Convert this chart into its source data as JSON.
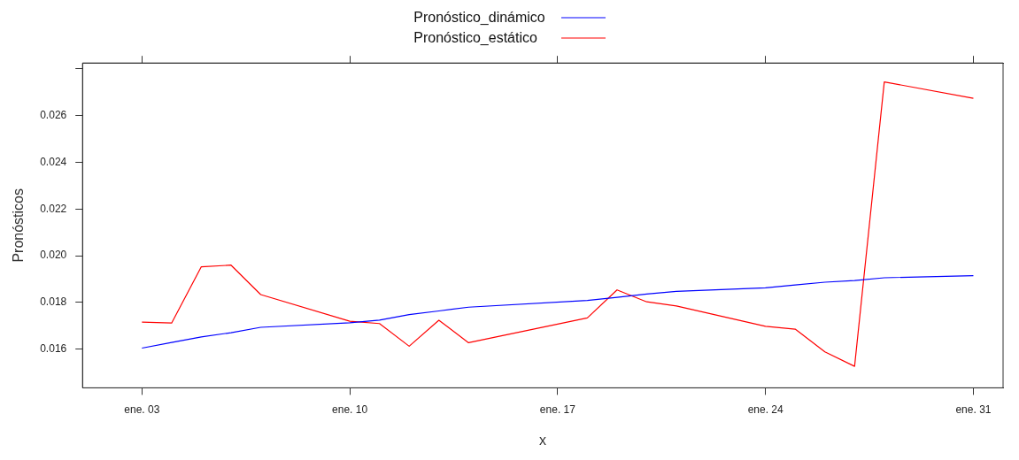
{
  "chart_data": {
    "type": "line",
    "xlabel": "x",
    "ylabel": "Pronósticos",
    "legend": "top",
    "grid": false,
    "marker": "none",
    "line_style": "solid",
    "x": [
      "--01-03",
      "--01-04",
      "--01-05",
      "--01-06",
      "--01-07",
      "--01-10",
      "--01-11",
      "--01-12",
      "--01-13",
      "--01-14",
      "--01-18",
      "--01-19",
      "--01-20",
      "--01-21",
      "--01-24",
      "--01-25",
      "--01-26",
      "--01-27",
      "--01-28",
      "--01-31"
    ],
    "xlim": [
      "--01-01",
      "--02-01"
    ],
    "xticks": [
      {
        "value": "--01-03",
        "label": "ene. 03"
      },
      {
        "value": "--01-10",
        "label": "ene. 10"
      },
      {
        "value": "--01-17",
        "label": "ene. 17"
      },
      {
        "value": "--01-24",
        "label": "ene. 24"
      },
      {
        "value": "--01-31",
        "label": "ene. 31"
      }
    ],
    "ylim": [
      0.01435,
      0.02825
    ],
    "yticks": [
      0.016,
      0.018,
      {
        "value": 0.02,
        "label": "0.020"
      },
      0.022,
      0.024,
      0.026,
      {
        "value": 0.028,
        "label": null
      }
    ],
    "series": [
      {
        "name": "Pronóstico_dinámico",
        "color": "#0000ff",
        "values": [
          0.01605,
          0.01629,
          0.01653,
          0.01671,
          0.01694,
          0.01713,
          0.01725,
          0.01748,
          0.01764,
          0.0178,
          0.01809,
          0.01822,
          0.01836,
          0.01848,
          0.01863,
          0.01875,
          0.01887,
          0.01894,
          0.01906,
          0.01915
        ]
      },
      {
        "name": "Pronóstico_estático",
        "color": "#ff0000",
        "values": [
          0.01716,
          0.01712,
          0.01953,
          0.0196,
          0.01834,
          0.0172,
          0.0171,
          0.01613,
          0.01724,
          0.01628,
          0.01734,
          0.01854,
          0.01803,
          0.01785,
          0.01698,
          0.01686,
          0.01589,
          0.01527,
          0.02744,
          0.02674
        ]
      }
    ]
  }
}
